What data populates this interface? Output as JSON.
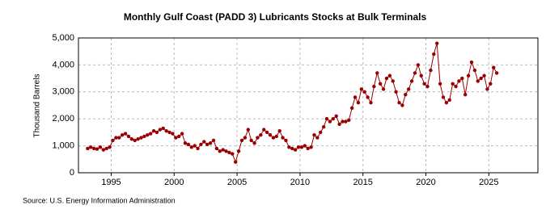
{
  "chart_data": {
    "type": "line",
    "title": "Monthly Gulf Coast (PADD 3) Lubricants Stocks at Bulk Terminals",
    "y_label": "Thousand Barrels",
    "source": "Source: U.S. Energy Information Administration",
    "xlim": [
      1992.4,
      2028.9
    ],
    "xticks": [
      1995,
      2000,
      2005,
      2010,
      2015,
      2020,
      2025
    ],
    "ylim": [
      0,
      5000
    ],
    "yticks": [
      0,
      {
        "value": 1000,
        "label": "1,000"
      },
      {
        "value": 2000,
        "label": "2,000"
      },
      {
        "value": 3000,
        "label": "3,000"
      },
      {
        "value": 4000,
        "label": "4,000"
      },
      {
        "value": 5000,
        "label": "5,000"
      }
    ],
    "grid": true,
    "x": [
      1993.13,
      1993.38,
      1993.63,
      1993.88,
      1994.13,
      1994.38,
      1994.63,
      1994.88,
      1995.13,
      1995.38,
      1995.63,
      1995.88,
      1996.13,
      1996.38,
      1996.63,
      1996.88,
      1997.13,
      1997.38,
      1997.63,
      1997.88,
      1998.13,
      1998.38,
      1998.63,
      1998.88,
      1999.13,
      1999.38,
      1999.63,
      1999.88,
      2000.13,
      2000.38,
      2000.63,
      2000.88,
      2001.13,
      2001.38,
      2001.63,
      2001.88,
      2002.13,
      2002.38,
      2002.63,
      2002.88,
      2003.13,
      2003.38,
      2003.63,
      2003.88,
      2004.13,
      2004.38,
      2004.63,
      2004.88,
      2005.13,
      2005.38,
      2005.63,
      2005.88,
      2006.13,
      2006.38,
      2006.63,
      2006.88,
      2007.13,
      2007.38,
      2007.63,
      2007.88,
      2008.13,
      2008.38,
      2008.63,
      2008.88,
      2009.13,
      2009.38,
      2009.63,
      2009.88,
      2010.13,
      2010.38,
      2010.63,
      2010.88,
      2011.13,
      2011.38,
      2011.63,
      2011.88,
      2012.13,
      2012.38,
      2012.63,
      2012.88,
      2013.13,
      2013.38,
      2013.63,
      2013.88,
      2014.13,
      2014.38,
      2014.63,
      2014.88,
      2015.13,
      2015.38,
      2015.63,
      2015.88,
      2016.13,
      2016.38,
      2016.63,
      2016.88,
      2017.13,
      2017.38,
      2017.63,
      2017.88,
      2018.13,
      2018.38,
      2018.63,
      2018.88,
      2019.13,
      2019.38,
      2019.63,
      2019.88,
      2020.13,
      2020.38,
      2020.63,
      2020.88,
      2021.13,
      2021.38,
      2021.63,
      2021.88,
      2022.13,
      2022.38,
      2022.63,
      2022.88,
      2023.13,
      2023.38,
      2023.63,
      2023.88,
      2024.13,
      2024.38,
      2024.63,
      2024.88,
      2025.13,
      2025.38,
      2025.63
    ],
    "series": [
      {
        "color": "#990000",
        "values": [
          900,
          950,
          900,
          880,
          950,
          850,
          900,
          950,
          1200,
          1300,
          1300,
          1400,
          1450,
          1350,
          1250,
          1200,
          1250,
          1300,
          1350,
          1400,
          1450,
          1550,
          1500,
          1600,
          1650,
          1550,
          1500,
          1450,
          1300,
          1350,
          1450,
          1100,
          1050,
          950,
          1000,
          900,
          1050,
          1150,
          1050,
          1100,
          1200,
          900,
          800,
          850,
          800,
          750,
          700,
          400,
          800,
          1200,
          1300,
          1600,
          1200,
          1100,
          1300,
          1400,
          1600,
          1500,
          1400,
          1300,
          1350,
          1550,
          1300,
          1200,
          950,
          900,
          850,
          950,
          950,
          1000,
          900,
          950,
          1400,
          1300,
          1500,
          1700,
          2000,
          1900,
          2000,
          2100,
          1800,
          1900,
          1900,
          1950,
          2400,
          2800,
          2600,
          3100,
          3000,
          2800,
          2600,
          3200,
          3700,
          3300,
          3100,
          3500,
          3600,
          3400,
          3000,
          2600,
          2500,
          2900,
          3100,
          3400,
          3700,
          4000,
          3600,
          3300,
          3200,
          3800,
          4400,
          4800,
          3300,
          2800,
          2600,
          2700,
          3300,
          3200,
          3400,
          3500,
          2900,
          3600,
          4100,
          3800,
          3400,
          3500,
          3600,
          3100,
          3300,
          3900,
          3700
        ]
      }
    ]
  }
}
